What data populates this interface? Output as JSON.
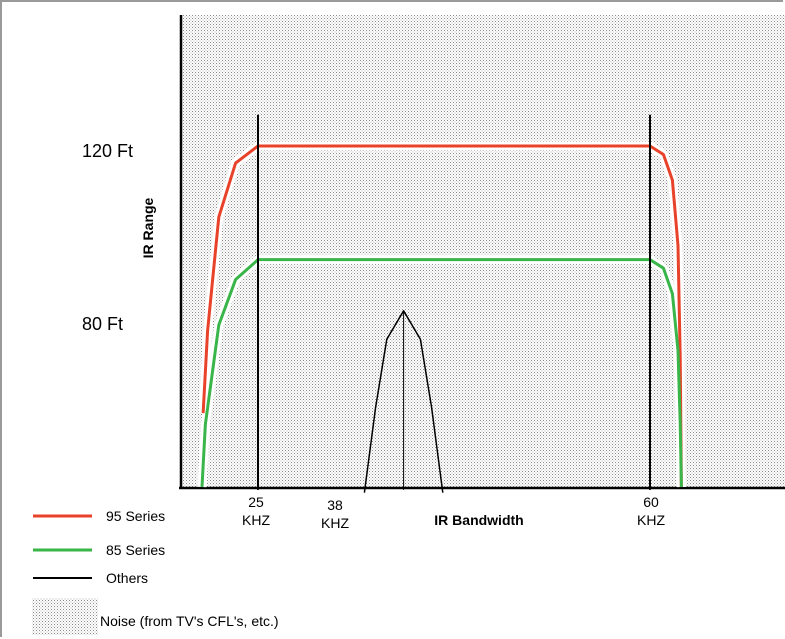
{
  "chart_data": {
    "type": "line",
    "xlabel": "IR Bandwidth",
    "ylabel": "IR Range",
    "x_ticks": [
      {
        "value": 25,
        "line1": "25",
        "line2": "KHZ"
      },
      {
        "value": 38,
        "line1": "38",
        "line2": "KHZ"
      },
      {
        "value": 60,
        "line1": "60",
        "line2": "KHZ"
      }
    ],
    "y_ticks": [
      {
        "value": 120,
        "label": "120 Ft"
      },
      {
        "value": 80,
        "label": "80 Ft"
      }
    ],
    "xlim": [
      14,
      80
    ],
    "ylim": [
      0,
      155
    ],
    "series": [
      {
        "name": "95 Series",
        "color": "#e8432a",
        "points": [
          [
            20.1,
            26
          ],
          [
            20.5,
            55
          ],
          [
            21.5,
            95
          ],
          [
            23,
            114
          ],
          [
            25,
            120
          ],
          [
            60,
            120
          ],
          [
            61.2,
            117
          ],
          [
            62,
            108
          ],
          [
            62.5,
            85
          ],
          [
            62.7,
            45
          ],
          [
            62.8,
            0
          ]
        ]
      },
      {
        "name": "85 Series",
        "color": "#3ab54a",
        "points": [
          [
            20,
            0
          ],
          [
            20.3,
            22
          ],
          [
            21.5,
            57
          ],
          [
            23,
            73
          ],
          [
            25,
            80
          ],
          [
            60,
            80
          ],
          [
            61.2,
            77
          ],
          [
            62,
            68
          ],
          [
            62.5,
            48
          ],
          [
            62.7,
            22
          ],
          [
            62.8,
            0
          ]
        ]
      },
      {
        "name": "Others",
        "color": "#000000",
        "points": [
          [
            34.5,
            -2
          ],
          [
            35.5,
            28
          ],
          [
            36.5,
            52
          ],
          [
            38,
            62
          ],
          [
            39.5,
            52
          ],
          [
            40.5,
            28
          ],
          [
            41.5,
            -2
          ]
        ]
      }
    ],
    "others_marker_lines": [
      25,
      38,
      60
    ],
    "noise": {
      "label": "Noise (from TV's CFL's, etc.)"
    },
    "legend": [
      {
        "label": "95 Series",
        "color": "#e8432a"
      },
      {
        "label": "85 Series",
        "color": "#3ab54a"
      },
      {
        "label": "Others",
        "color": "#000000"
      }
    ],
    "legend_placement": "bottom-left",
    "grid": false
  }
}
